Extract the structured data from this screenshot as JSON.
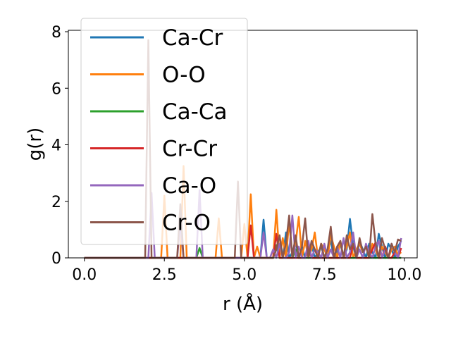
{
  "chart_data": {
    "type": "line",
    "title": "",
    "xlabel": "r (Å)",
    "ylabel": "g(r)",
    "xlim": [
      -0.5,
      10.4
    ],
    "ylim": [
      0,
      8.05
    ],
    "xticks": [
      "0.0",
      "2.5",
      "5.0",
      "7.5",
      "10.0"
    ],
    "yticks": [
      "0",
      "2",
      "4",
      "6",
      "8"
    ],
    "grid": false,
    "legend_position": "upper left",
    "x": [
      0.0,
      0.1,
      0.2,
      0.3,
      0.4,
      0.5,
      0.6,
      0.7,
      0.8,
      0.9,
      1.0,
      1.1,
      1.2,
      1.3,
      1.4,
      1.5,
      1.6,
      1.7,
      1.8,
      1.9,
      2.0,
      2.1,
      2.2,
      2.3,
      2.4,
      2.5,
      2.6,
      2.7,
      2.8,
      2.9,
      3.0,
      3.1,
      3.2,
      3.3,
      3.4,
      3.5,
      3.6,
      3.7,
      3.8,
      3.9,
      4.0,
      4.1,
      4.2,
      4.3,
      4.4,
      4.5,
      4.6,
      4.7,
      4.8,
      4.9,
      5.0,
      5.1,
      5.2,
      5.3,
      5.4,
      5.5,
      5.6,
      5.7,
      5.8,
      5.9,
      6.0,
      6.1,
      6.2,
      6.3,
      6.4,
      6.5,
      6.6,
      6.7,
      6.8,
      6.9,
      7.0,
      7.1,
      7.2,
      7.3,
      7.4,
      7.5,
      7.6,
      7.7,
      7.8,
      7.9,
      8.0,
      8.1,
      8.2,
      8.3,
      8.4,
      8.5,
      8.6,
      8.7,
      8.8,
      8.9,
      9.0,
      9.1,
      9.2,
      9.3,
      9.4,
      9.5,
      9.6,
      9.7,
      9.8,
      9.9
    ],
    "series": [
      {
        "name": "Ca-Cr",
        "color": "#1f77b4",
        "values": [
          0,
          0,
          0,
          0,
          0,
          0,
          0,
          0,
          0,
          0,
          0,
          0,
          0,
          0,
          0,
          0,
          0,
          0,
          0,
          0,
          0,
          0,
          0,
          0,
          0,
          0,
          0,
          0,
          0,
          0,
          0,
          0,
          0,
          0,
          0,
          0,
          0,
          0,
          0,
          0,
          0,
          0,
          0,
          0,
          0,
          0,
          0,
          0,
          0,
          0,
          0,
          0,
          0,
          0,
          0,
          0,
          1.35,
          0,
          0,
          0,
          0.3,
          0.5,
          0,
          0.9,
          0,
          0.2,
          0.6,
          0,
          0.4,
          0,
          0.3,
          0.5,
          0,
          0.2,
          0.4,
          0,
          0.3,
          0.6,
          0,
          0.2,
          0.5,
          0,
          0.3,
          1.38,
          0.4,
          0,
          0.6,
          0.3,
          0,
          0.5,
          0.2,
          0,
          0.85,
          0.4,
          0,
          0.5,
          0.3,
          0,
          0.4,
          0.6
        ]
      },
      {
        "name": "O-O",
        "color": "#ff7f0e",
        "values": [
          0,
          0,
          0,
          0,
          0,
          0,
          0,
          0,
          0,
          0,
          0,
          0,
          0,
          0,
          0,
          0,
          0,
          0,
          0,
          0,
          0,
          0,
          0,
          0,
          0,
          2.2,
          0,
          0,
          0,
          0,
          0,
          3.25,
          0,
          0,
          0,
          0,
          0,
          0,
          0,
          0,
          0,
          0,
          1.4,
          0,
          0,
          0,
          0,
          0,
          0,
          0,
          1.2,
          0,
          2.25,
          0,
          0.4,
          0,
          0,
          0,
          0,
          0,
          1.7,
          0,
          0.7,
          0,
          1.3,
          0,
          0.5,
          1.45,
          0,
          0.6,
          0,
          0.3,
          0.9,
          0,
          0.5,
          0.3,
          0,
          0.8,
          0.4,
          0,
          0.6,
          0,
          0.4,
          0.9,
          0,
          0.3,
          0.5,
          0.2,
          0.4,
          0,
          0.5,
          0.3,
          0,
          0.4,
          0.2,
          0,
          0.3,
          0.4,
          0.1,
          0.2
        ]
      },
      {
        "name": "Ca-Ca",
        "color": "#2ca02c",
        "values": [
          0,
          0,
          0,
          0,
          0,
          0,
          0,
          0,
          0,
          0,
          0,
          0,
          0,
          0,
          0,
          0,
          0,
          0,
          0,
          0,
          0,
          0,
          0,
          0,
          0,
          0,
          0,
          0,
          0,
          0,
          0,
          0,
          0,
          0,
          0,
          0,
          0.35,
          0,
          0,
          0,
          0,
          0,
          0,
          0,
          0,
          0,
          0,
          0,
          0,
          0,
          0,
          0,
          0,
          0,
          0,
          0,
          0,
          0,
          0,
          0,
          0.45,
          0,
          0,
          0,
          0,
          0,
          0.3,
          0,
          0,
          0,
          0,
          0,
          0,
          0,
          0,
          0,
          0,
          0,
          0,
          0,
          0,
          0,
          0,
          0,
          0,
          0,
          0,
          0,
          0,
          0,
          0,
          0,
          0,
          0,
          0,
          0,
          0,
          0,
          0,
          0
        ]
      },
      {
        "name": "Cr-Cr",
        "color": "#d62728",
        "values": [
          0,
          0,
          0,
          0,
          0,
          0,
          0,
          0,
          0,
          0,
          0,
          0,
          0,
          0,
          0,
          0,
          0,
          0,
          0,
          0,
          0,
          0,
          0,
          0,
          0,
          0,
          0,
          0,
          0,
          0,
          0,
          0,
          0,
          0,
          0,
          0,
          0,
          0,
          0,
          0,
          0,
          0,
          0,
          0,
          0,
          0,
          0,
          0,
          0,
          0,
          0,
          0,
          1.15,
          0,
          0,
          0,
          0,
          0,
          0,
          0,
          0.85,
          0,
          0,
          0,
          0,
          0,
          0,
          0,
          0,
          0,
          0.4,
          0,
          0,
          0,
          0,
          0,
          0,
          0,
          0,
          0,
          0,
          0,
          0,
          0,
          0.5,
          0,
          0,
          0,
          0,
          0,
          0.3,
          0.55,
          0,
          0,
          0.4,
          0,
          0,
          0.2,
          0,
          0.35
        ]
      },
      {
        "name": "Ca-O",
        "color": "#9467bd",
        "values": [
          0,
          0,
          0,
          0,
          0,
          0,
          0,
          0,
          0,
          0,
          0,
          0,
          0,
          0,
          0,
          0,
          0,
          0,
          0,
          0,
          0,
          2.3,
          0,
          0,
          0,
          0,
          0,
          0,
          0,
          0,
          1.25,
          0,
          0,
          0,
          0,
          0,
          2.4,
          0,
          0,
          0,
          0,
          0,
          0,
          0,
          0,
          0,
          0,
          0,
          0,
          0,
          0,
          0,
          0,
          0,
          0,
          0,
          0.9,
          0,
          0,
          0.3,
          0,
          0.5,
          0,
          0,
          0.2,
          1.5,
          0,
          0.4,
          0,
          0,
          0.6,
          0,
          0.3,
          0.2,
          0,
          0.5,
          0,
          0.3,
          0,
          0.4,
          0,
          0.7,
          0,
          0.2,
          0.9,
          0,
          0.3,
          0,
          0.5,
          0.2,
          0,
          0.4,
          0.6,
          0,
          0.3,
          0,
          0.5,
          0.2,
          0,
          0.7
        ]
      },
      {
        "name": "Cr-O",
        "color": "#8c564b",
        "values": [
          0,
          0,
          0,
          0,
          0,
          0,
          0,
          0,
          0,
          0,
          0,
          0,
          0,
          0,
          0,
          0,
          0,
          0,
          0,
          0,
          7.7,
          0,
          0,
          0,
          0,
          0,
          0,
          0,
          0,
          0,
          1.9,
          0,
          0,
          0,
          0,
          0,
          0,
          0,
          0,
          0,
          0,
          0,
          0,
          0,
          0,
          0,
          0,
          0,
          2.7,
          0,
          0,
          0,
          0,
          0,
          0,
          0,
          0,
          0,
          0,
          0,
          0.3,
          0.8,
          0,
          0.5,
          1.5,
          0,
          0.8,
          0,
          0.4,
          1.4,
          0,
          0.6,
          0.3,
          0,
          0.5,
          0,
          0.3,
          1.1,
          0,
          0.4,
          0.6,
          0,
          0.8,
          0.3,
          0.5,
          0,
          0.7,
          0.2,
          0.4,
          0,
          1.55,
          0.5,
          0,
          0.7,
          0.3,
          0,
          0.5,
          0.2,
          0.65,
          0.6
        ]
      }
    ]
  }
}
